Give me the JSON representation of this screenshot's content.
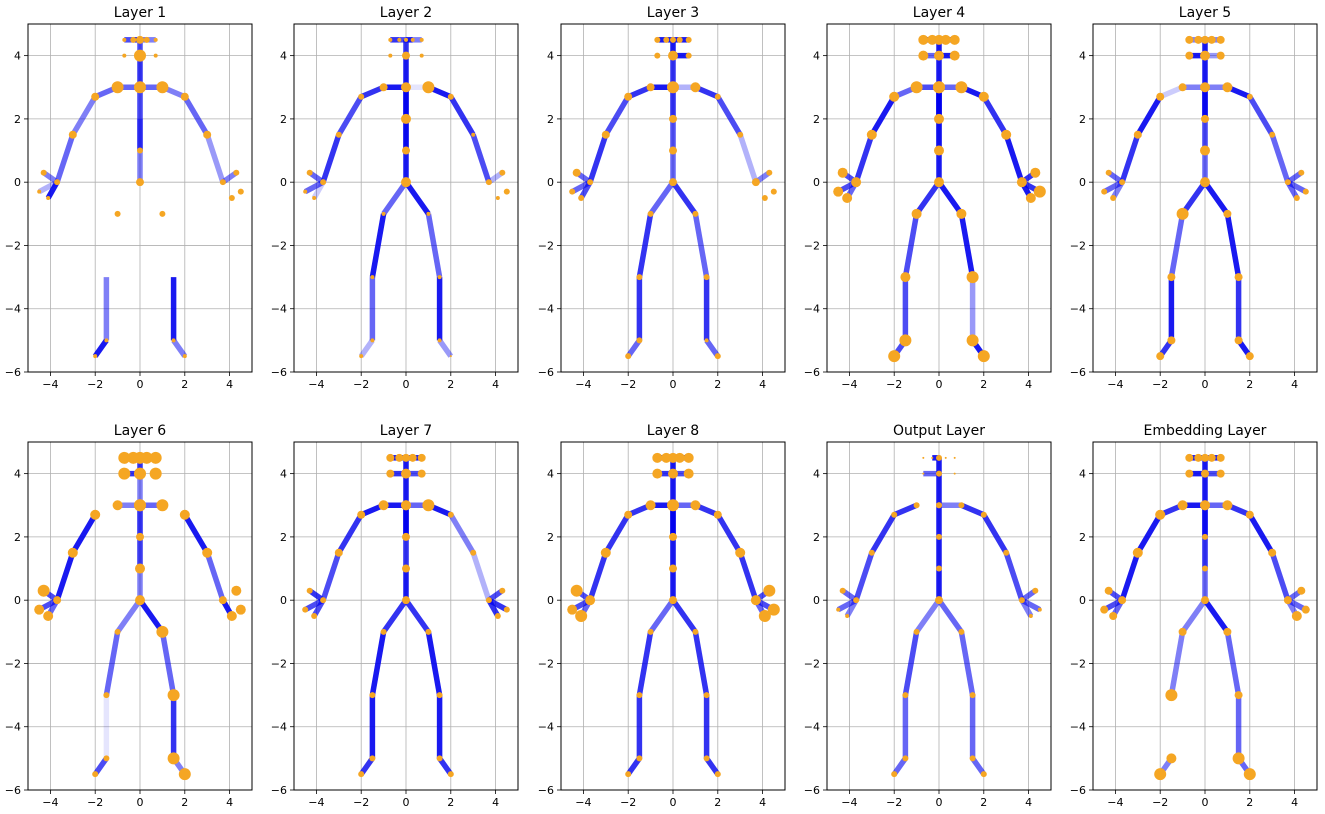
{
  "chart_data": {
    "type": "scatter",
    "description_kind": "skeleton_grid",
    "xlim": [
      -5,
      5
    ],
    "ylim": [
      -6,
      5
    ],
    "xticks": [
      -4,
      -2,
      0,
      2,
      4
    ],
    "yticks": [
      -6,
      -4,
      -2,
      0,
      2,
      4
    ],
    "grid": true,
    "colors": {
      "bone": "#0000ee",
      "joint": "#f5a623",
      "frame": "#000000",
      "grid": "#b0b0b0"
    },
    "joints": [
      [
        0,
        0
      ],
      [
        0,
        1
      ],
      [
        0,
        2
      ],
      [
        0,
        3
      ],
      [
        0,
        4
      ],
      [
        0,
        4.5
      ],
      [
        -0.3,
        4.5
      ],
      [
        -0.7,
        4.5
      ],
      [
        0.3,
        4.5
      ],
      [
        0.7,
        4.5
      ],
      [
        -1,
        3
      ],
      [
        -2,
        2.7
      ],
      [
        -3,
        1.5
      ],
      [
        -3.7,
        0
      ],
      [
        -4.3,
        0.3
      ],
      [
        -4.5,
        -0.3
      ],
      [
        -4.1,
        -0.5
      ],
      [
        1,
        3
      ],
      [
        2,
        2.7
      ],
      [
        3,
        1.5
      ],
      [
        3.7,
        0
      ],
      [
        4.3,
        0.3
      ],
      [
        4.5,
        -0.3
      ],
      [
        4.1,
        -0.5
      ],
      [
        -1,
        -1
      ],
      [
        -1.5,
        -3
      ],
      [
        -1.5,
        -5
      ],
      [
        -2,
        -5.5
      ],
      [
        1,
        -1
      ],
      [
        1.5,
        -3
      ],
      [
        1.5,
        -5
      ],
      [
        2,
        -5.5
      ],
      [
        -0.7,
        4
      ],
      [
        0.7,
        4
      ],
      [
        0,
        3
      ]
    ],
    "panels": [
      {
        "title": "Layer 1",
        "bone_strength": [
          0.5,
          0.6,
          0.3,
          0.8,
          0.7,
          0.9,
          0.7,
          0.6,
          0.5,
          0.6,
          0.6,
          0.5,
          0.6,
          0.5,
          0.3,
          0.9,
          0.6,
          0.5,
          0.6,
          0.4,
          0.5,
          0.0,
          0.0,
          0.0,
          0.0,
          0.5,
          0.9,
          0.0,
          0.0,
          0.9,
          0.5,
          0.0,
          0.0,
          0.0,
          0.0,
          0.6
        ],
        "joint_size": [
          4,
          3,
          0,
          5,
          6,
          4,
          3,
          2,
          3,
          2,
          6,
          4,
          4,
          3,
          3,
          2,
          2,
          6,
          4,
          4,
          3,
          3,
          3,
          3,
          3,
          0,
          2,
          2,
          3,
          0,
          2,
          2,
          2,
          2,
          6
        ]
      },
      {
        "title": "Layer 2",
        "bone_strength": [
          0.9,
          0.8,
          0.9,
          0.9,
          0.8,
          0.7,
          0.8,
          0.9,
          0.5,
          0.9,
          0.8,
          0.7,
          0.8,
          0.6,
          0.6,
          0.2,
          0.1,
          0.9,
          0.8,
          0.7,
          0.3,
          0.0,
          0.0,
          0.6,
          0.9,
          0.6,
          0.3,
          0.9,
          0.6,
          0.9,
          0.4,
          0.0,
          0.0,
          0.0,
          0.0,
          0.8
        ],
        "joint_size": [
          5,
          4,
          5,
          5,
          4,
          2,
          2,
          2,
          2,
          2,
          4,
          3,
          3,
          3,
          3,
          2,
          2,
          6,
          3,
          2,
          3,
          3,
          3,
          2,
          2,
          2,
          2,
          2,
          2,
          2,
          2,
          1,
          2,
          2,
          4
        ]
      },
      {
        "title": "Layer 3",
        "bone_strength": [
          0.6,
          0.2,
          0.5,
          0.8,
          0.9,
          0.9,
          0.9,
          0.9,
          0.9,
          0.9,
          0.8,
          0.7,
          0.8,
          0.6,
          0.6,
          0.7,
          0.3,
          0.8,
          0.7,
          0.3,
          0.5,
          0.0,
          0.0,
          0.6,
          0.8,
          0.8,
          0.6,
          0.8,
          0.6,
          0.8,
          0.6,
          0.0,
          0.9,
          0.0,
          0.5,
          0.6
        ],
        "joint_size": [
          4,
          4,
          4,
          5,
          5,
          3,
          3,
          3,
          3,
          3,
          4,
          4,
          4,
          3,
          4,
          3,
          3,
          5,
          3,
          3,
          4,
          3,
          3,
          3,
          3,
          3,
          3,
          3,
          3,
          3,
          2,
          3,
          3,
          3,
          6
        ]
      },
      {
        "title": "Layer 4",
        "bone_strength": [
          0.9,
          0.8,
          0.9,
          0.9,
          0.9,
          0.9,
          0.9,
          0.9,
          0.8,
          0.7,
          0.6,
          0.9,
          0.8,
          0.7,
          0.7,
          0.6,
          0.6,
          0.9,
          0.8,
          0.9,
          0.8,
          0.8,
          0.9,
          0.8,
          0.7,
          0.7,
          0.7,
          0.9,
          0.9,
          0.4,
          0.9,
          0.6,
          0.9,
          0.9,
          0.5,
          0.7
        ],
        "joint_size": [
          5,
          5,
          5,
          6,
          5,
          5,
          5,
          5,
          5,
          5,
          6,
          5,
          5,
          5,
          5,
          5,
          5,
          6,
          5,
          5,
          5,
          5,
          6,
          5,
          5,
          5,
          6,
          6,
          5,
          6,
          6,
          6,
          5,
          5,
          6
        ]
      },
      {
        "title": "Layer 5",
        "bone_strength": [
          0.6,
          0.3,
          0.6,
          0.9,
          0.9,
          0.5,
          0.5,
          0.5,
          0.5,
          0.5,
          0.2,
          0.9,
          0.8,
          0.6,
          0.6,
          0.5,
          0.5,
          0.9,
          0.7,
          0.6,
          0.6,
          0.6,
          0.6,
          0.8,
          0.6,
          0.9,
          0.8,
          0.9,
          0.9,
          0.8,
          0.9,
          0.9,
          0.4,
          0.8,
          0.5,
          0.6
        ],
        "joint_size": [
          5,
          5,
          4,
          4,
          5,
          4,
          4,
          4,
          4,
          4,
          4,
          4,
          4,
          3,
          3,
          3,
          3,
          5,
          3,
          3,
          3,
          3,
          3,
          3,
          6,
          4,
          4,
          4,
          4,
          4,
          4,
          4,
          4,
          4,
          5
        ]
      },
      {
        "title": "Layer 6",
        "bone_strength": [
          0.5,
          0.4,
          0.5,
          0.5,
          0.8,
          0.9,
          0.5,
          0.5,
          0.5,
          0.5,
          0.0,
          0.9,
          0.9,
          0.7,
          0.7,
          0.6,
          0.6,
          0.0,
          0.9,
          0.6,
          0.0,
          0.0,
          0.9,
          0.5,
          0.6,
          0.1,
          0.7,
          0.9,
          0.6,
          0.8,
          0.5,
          0.8,
          0.0,
          0.0,
          0.0,
          0.6
        ],
        "joint_size": [
          5,
          5,
          4,
          6,
          6,
          6,
          6,
          6,
          6,
          6,
          5,
          5,
          5,
          4,
          6,
          5,
          5,
          6,
          5,
          5,
          4,
          5,
          5,
          5,
          3,
          3,
          3,
          3,
          6,
          6,
          6,
          6,
          6,
          6,
          6
        ]
      },
      {
        "title": "Layer 7",
        "bone_strength": [
          0.9,
          0.6,
          0.9,
          0.9,
          0.9,
          0.9,
          0.9,
          0.9,
          0.9,
          0.9,
          0.9,
          0.8,
          0.7,
          0.8,
          0.7,
          0.7,
          0.6,
          0.9,
          0.5,
          0.3,
          0.7,
          0.8,
          0.8,
          0.8,
          0.9,
          0.9,
          0.8,
          0.8,
          0.9,
          0.9,
          0.8,
          0.8,
          0.7,
          0.7,
          0.5,
          0.5
        ],
        "joint_size": [
          4,
          4,
          4,
          5,
          5,
          4,
          4,
          4,
          4,
          4,
          5,
          4,
          4,
          3,
          3,
          3,
          3,
          6,
          3,
          3,
          3,
          3,
          3,
          3,
          3,
          3,
          3,
          3,
          3,
          3,
          3,
          3,
          4,
          4,
          5
        ]
      },
      {
        "title": "Layer 8",
        "bone_strength": [
          0.9,
          0.8,
          0.9,
          0.9,
          0.9,
          0.9,
          0.9,
          0.9,
          0.9,
          0.9,
          0.8,
          0.8,
          0.8,
          0.7,
          0.7,
          0.6,
          0.6,
          0.8,
          0.8,
          0.8,
          0.7,
          0.7,
          0.6,
          0.6,
          0.8,
          0.8,
          0.8,
          0.8,
          0.8,
          0.8,
          0.8,
          0.8,
          0.7,
          0.7,
          0.5,
          0.5
        ],
        "joint_size": [
          4,
          4,
          4,
          5,
          5,
          5,
          5,
          5,
          5,
          5,
          5,
          4,
          5,
          5,
          6,
          5,
          6,
          5,
          4,
          5,
          5,
          6,
          6,
          6,
          3,
          3,
          3,
          3,
          3,
          3,
          3,
          3,
          5,
          5,
          6
        ]
      },
      {
        "title": "Output Layer",
        "bone_strength": [
          0.9,
          0.9,
          0.9,
          0.9,
          0.9,
          0.9,
          0.0,
          0.0,
          0.0,
          0.0,
          0.8,
          0.8,
          0.7,
          0.6,
          0.6,
          0.5,
          0.5,
          0.8,
          0.8,
          0.7,
          0.6,
          0.6,
          0.5,
          0.5,
          0.7,
          0.6,
          0.6,
          0.6,
          0.6,
          0.6,
          0.6,
          0.6,
          0.0,
          0.0,
          0.0,
          0.0
        ],
        "joint_size": [
          4,
          3,
          3,
          3,
          3,
          3,
          1,
          1,
          1,
          1,
          3,
          3,
          3,
          3,
          3,
          2,
          2,
          3,
          3,
          3,
          3,
          3,
          2,
          2,
          3,
          3,
          3,
          3,
          3,
          3,
          3,
          3,
          1,
          1,
          3
        ]
      },
      {
        "title": "Embedding Layer",
        "bone_strength": [
          0.6,
          0.5,
          0.6,
          0.9,
          0.9,
          0.9,
          0.9,
          0.9,
          0.9,
          0.9,
          0.8,
          0.9,
          0.9,
          0.7,
          0.7,
          0.6,
          0.6,
          0.8,
          0.9,
          0.7,
          0.6,
          0.6,
          0.5,
          0.5,
          0.5,
          0.0,
          0.5,
          0.9,
          0.6,
          0.6,
          0.6,
          0.9,
          0.7,
          0.7,
          0.5,
          0.6
        ],
        "joint_size": [
          4,
          3,
          3,
          5,
          4,
          4,
          4,
          4,
          4,
          4,
          5,
          5,
          5,
          4,
          4,
          4,
          4,
          5,
          4,
          4,
          4,
          4,
          4,
          5,
          4,
          6,
          5,
          6,
          4,
          4,
          6,
          6,
          4,
          4,
          5
        ]
      }
    ]
  }
}
